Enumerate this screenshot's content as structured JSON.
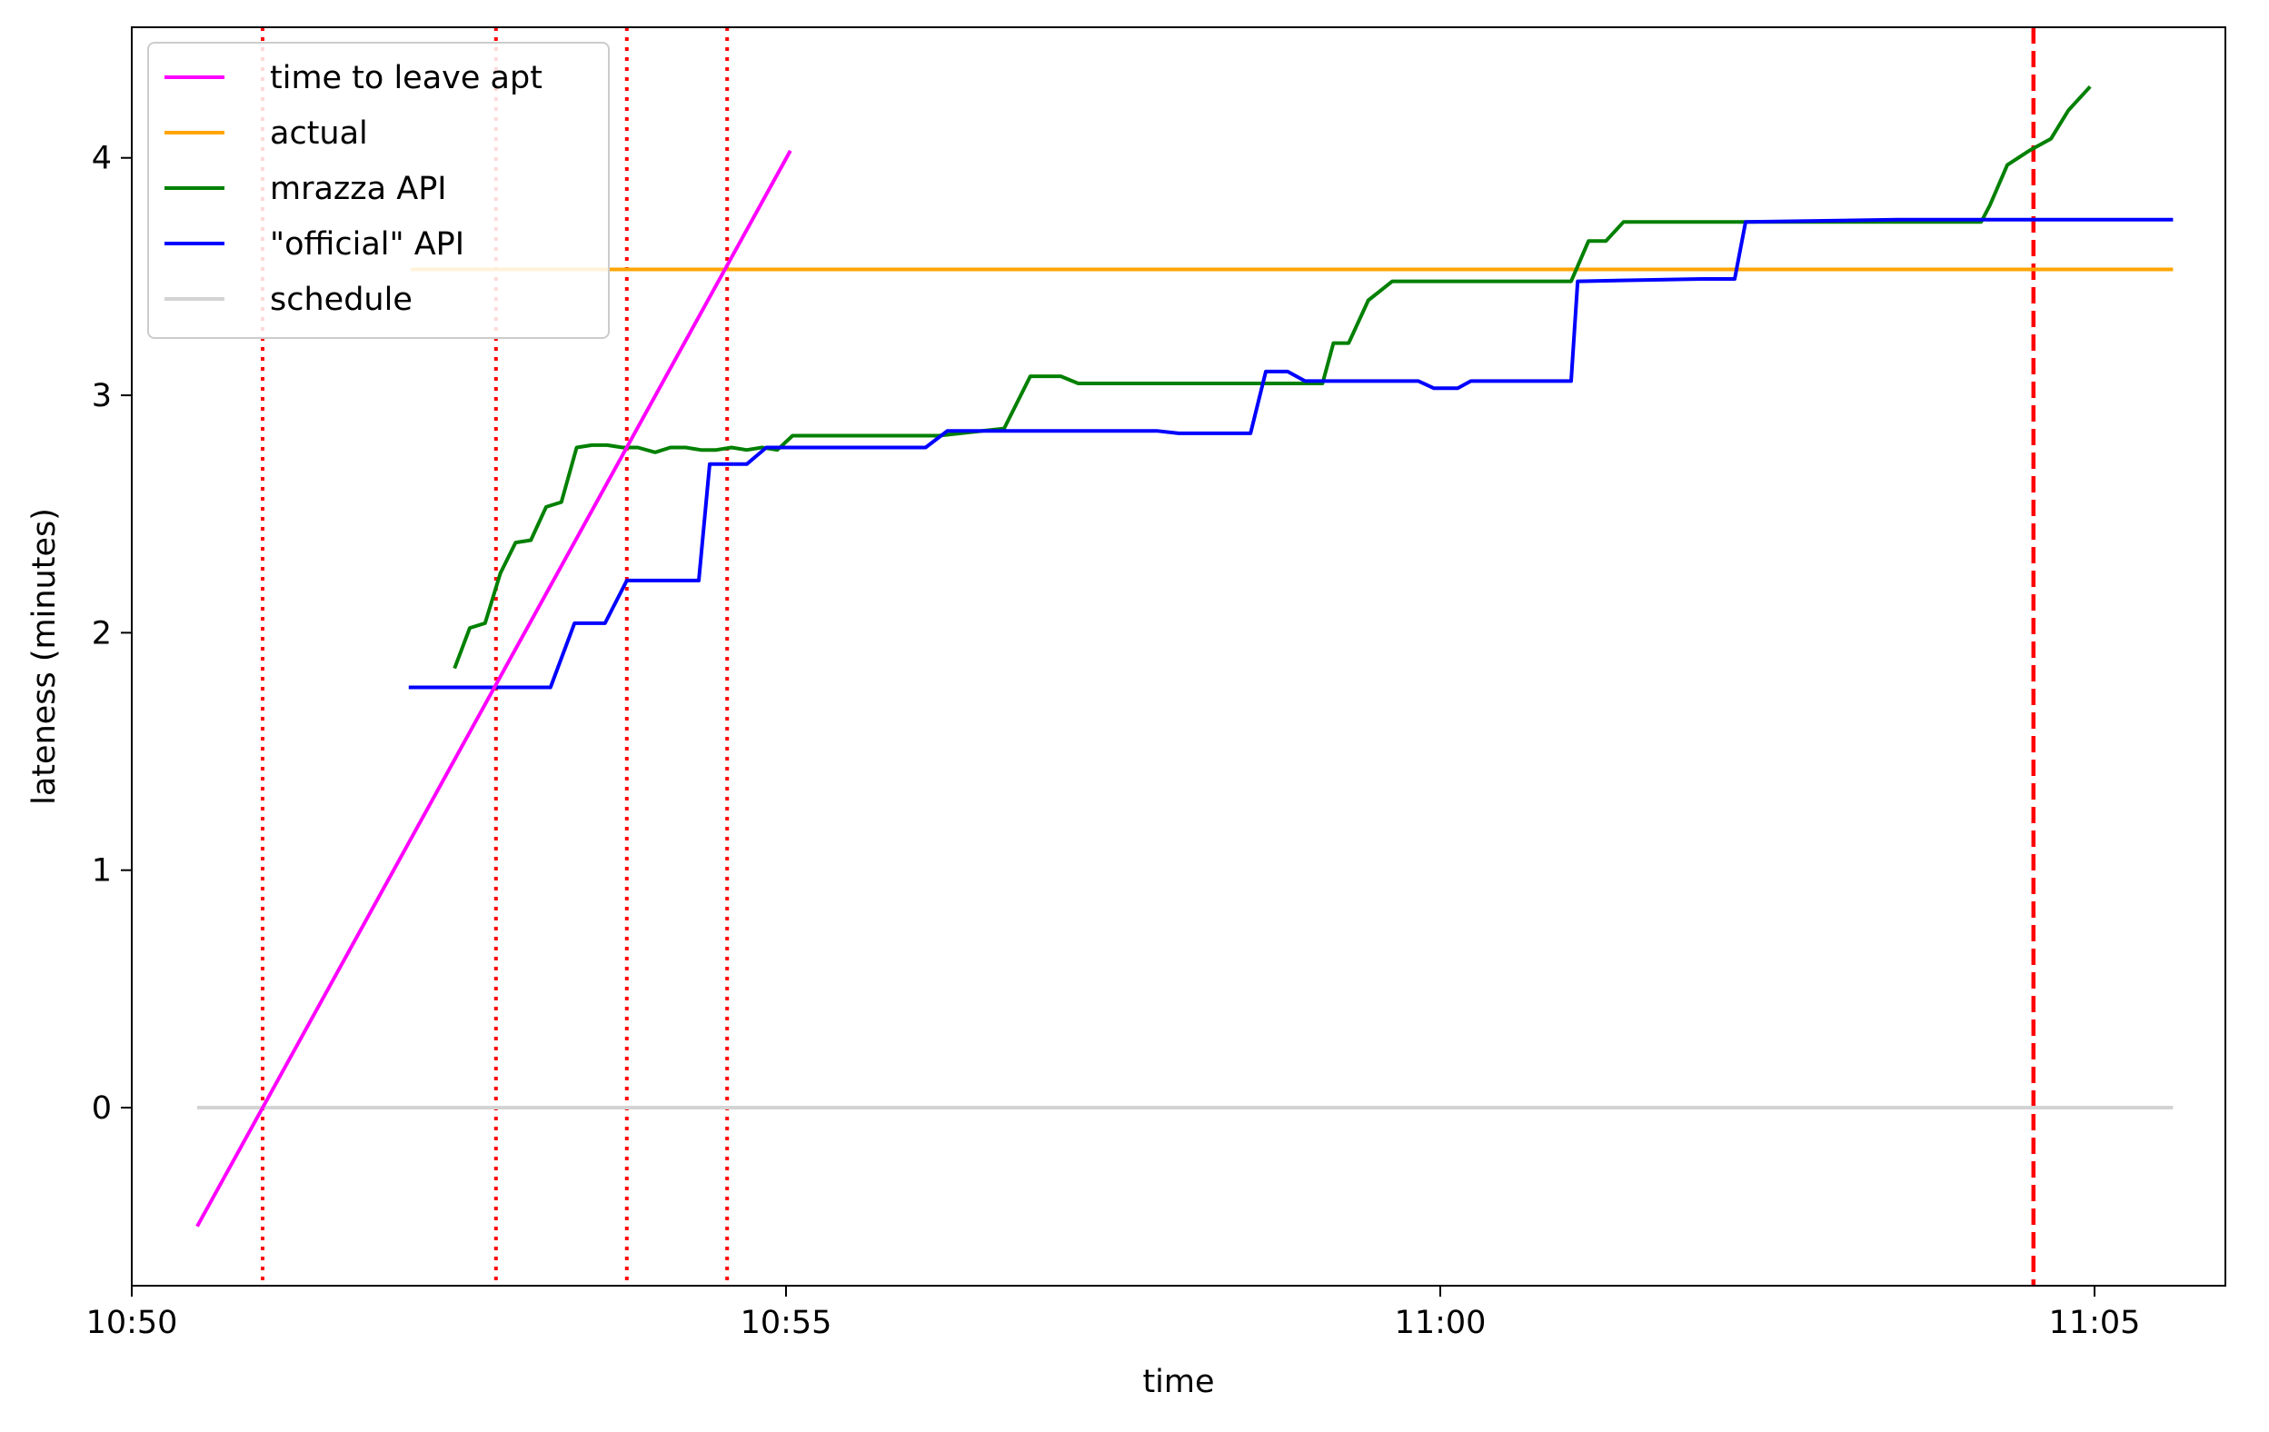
{
  "chart_data": {
    "type": "line",
    "title": "",
    "xlabel": "time",
    "ylabel": "lateness (minutes)",
    "x_unit": "clock time (HH:MM:SS)",
    "xlim": [
      "10:50:00",
      "11:06:00"
    ],
    "ylim": [
      -0.75,
      4.55
    ],
    "x_ticks": [
      {
        "value": "10:50:00",
        "label": "10:50"
      },
      {
        "value": "10:55:00",
        "label": "10:55"
      },
      {
        "value": "11:00:00",
        "label": "11:00"
      },
      {
        "value": "11:05:00",
        "label": "11:05"
      }
    ],
    "y_ticks": [
      0,
      1,
      2,
      3,
      4
    ],
    "grid": false,
    "legend_position": "top-left",
    "series": [
      {
        "name": "time to leave apt",
        "color": "#ff00ff",
        "style": "solid",
        "points": [
          [
            "10:50:30",
            -0.5
          ],
          [
            "10:55:02",
            4.03
          ]
        ]
      },
      {
        "name": "actual",
        "color": "#ffa500",
        "style": "solid",
        "points": [
          [
            "10:52:08",
            3.53
          ],
          [
            "11:05:36",
            3.53
          ]
        ]
      },
      {
        "name": "mrazza API",
        "color": "#008000",
        "style": "solid",
        "points": [
          [
            "10:52:28",
            1.85
          ],
          [
            "10:52:35",
            2.02
          ],
          [
            "10:52:42",
            2.04
          ],
          [
            "10:52:49",
            2.25
          ],
          [
            "10:52:56",
            2.38
          ],
          [
            "10:53:03",
            2.39
          ],
          [
            "10:53:10",
            2.53
          ],
          [
            "10:53:17",
            2.55
          ],
          [
            "10:53:24",
            2.78
          ],
          [
            "10:53:31",
            2.79
          ],
          [
            "10:53:38",
            2.79
          ],
          [
            "10:53:45",
            2.78
          ],
          [
            "10:53:52",
            2.78
          ],
          [
            "10:54:00",
            2.76
          ],
          [
            "10:54:07",
            2.78
          ],
          [
            "10:54:14",
            2.78
          ],
          [
            "10:54:21",
            2.77
          ],
          [
            "10:54:28",
            2.77
          ],
          [
            "10:54:35",
            2.78
          ],
          [
            "10:54:42",
            2.77
          ],
          [
            "10:54:49",
            2.78
          ],
          [
            "10:54:56",
            2.77
          ],
          [
            "10:55:03",
            2.83
          ],
          [
            "10:56:10",
            2.83
          ],
          [
            "10:56:20",
            2.84
          ],
          [
            "10:56:40",
            2.86
          ],
          [
            "10:56:52",
            3.08
          ],
          [
            "10:57:06",
            3.08
          ],
          [
            "10:57:14",
            3.05
          ],
          [
            "10:59:06",
            3.05
          ],
          [
            "10:59:11",
            3.22
          ],
          [
            "10:59:18",
            3.22
          ],
          [
            "10:59:27",
            3.4
          ],
          [
            "10:59:38",
            3.48
          ],
          [
            "11:01:00",
            3.48
          ],
          [
            "11:01:08",
            3.65
          ],
          [
            "11:01:16",
            3.65
          ],
          [
            "11:01:24",
            3.73
          ],
          [
            "11:04:08",
            3.73
          ],
          [
            "11:04:12",
            3.8
          ],
          [
            "11:04:20",
            3.97
          ],
          [
            "11:04:30",
            4.03
          ],
          [
            "11:04:40",
            4.08
          ],
          [
            "11:04:48",
            4.2
          ],
          [
            "11:04:58",
            4.3
          ]
        ]
      },
      {
        "name": "\"official\" API",
        "color": "#0000ff",
        "style": "solid",
        "points": [
          [
            "10:52:07",
            1.77
          ],
          [
            "10:53:12",
            1.77
          ],
          [
            "10:53:23",
            2.04
          ],
          [
            "10:53:37",
            2.04
          ],
          [
            "10:53:47",
            2.22
          ],
          [
            "10:54:20",
            2.22
          ],
          [
            "10:54:25",
            2.71
          ],
          [
            "10:54:42",
            2.71
          ],
          [
            "10:54:51",
            2.78
          ],
          [
            "10:55:10",
            2.78
          ],
          [
            "10:56:04",
            2.78
          ],
          [
            "10:56:14",
            2.85
          ],
          [
            "10:57:50",
            2.85
          ],
          [
            "10:58:00",
            2.84
          ],
          [
            "10:58:33",
            2.84
          ],
          [
            "10:58:40",
            3.1
          ],
          [
            "10:58:50",
            3.1
          ],
          [
            "10:58:58",
            3.06
          ],
          [
            "10:59:30",
            3.06
          ],
          [
            "10:59:50",
            3.06
          ],
          [
            "10:59:57",
            3.03
          ],
          [
            "11:00:08",
            3.03
          ],
          [
            "11:00:14",
            3.06
          ],
          [
            "11:01:00",
            3.06
          ],
          [
            "11:01:03",
            3.48
          ],
          [
            "11:02:00",
            3.49
          ],
          [
            "11:02:15",
            3.49
          ],
          [
            "11:02:20",
            3.73
          ],
          [
            "11:03:30",
            3.74
          ],
          [
            "11:04:10",
            3.74
          ],
          [
            "11:05:36",
            3.74
          ]
        ]
      },
      {
        "name": "schedule",
        "color": "#d3d3d3",
        "style": "solid",
        "points": [
          [
            "10:50:30",
            0.0
          ],
          [
            "11:05:36",
            0.0
          ]
        ]
      }
    ],
    "vertical_lines": [
      {
        "x": "10:51:00",
        "color": "#ff0000",
        "style": "dotted"
      },
      {
        "x": "10:52:47",
        "color": "#ff0000",
        "style": "dotted"
      },
      {
        "x": "10:53:47",
        "color": "#ff0000",
        "style": "dotted"
      },
      {
        "x": "10:54:33",
        "color": "#ff0000",
        "style": "dotted"
      },
      {
        "x": "11:04:32",
        "color": "#ff0000",
        "style": "dashed"
      }
    ]
  }
}
